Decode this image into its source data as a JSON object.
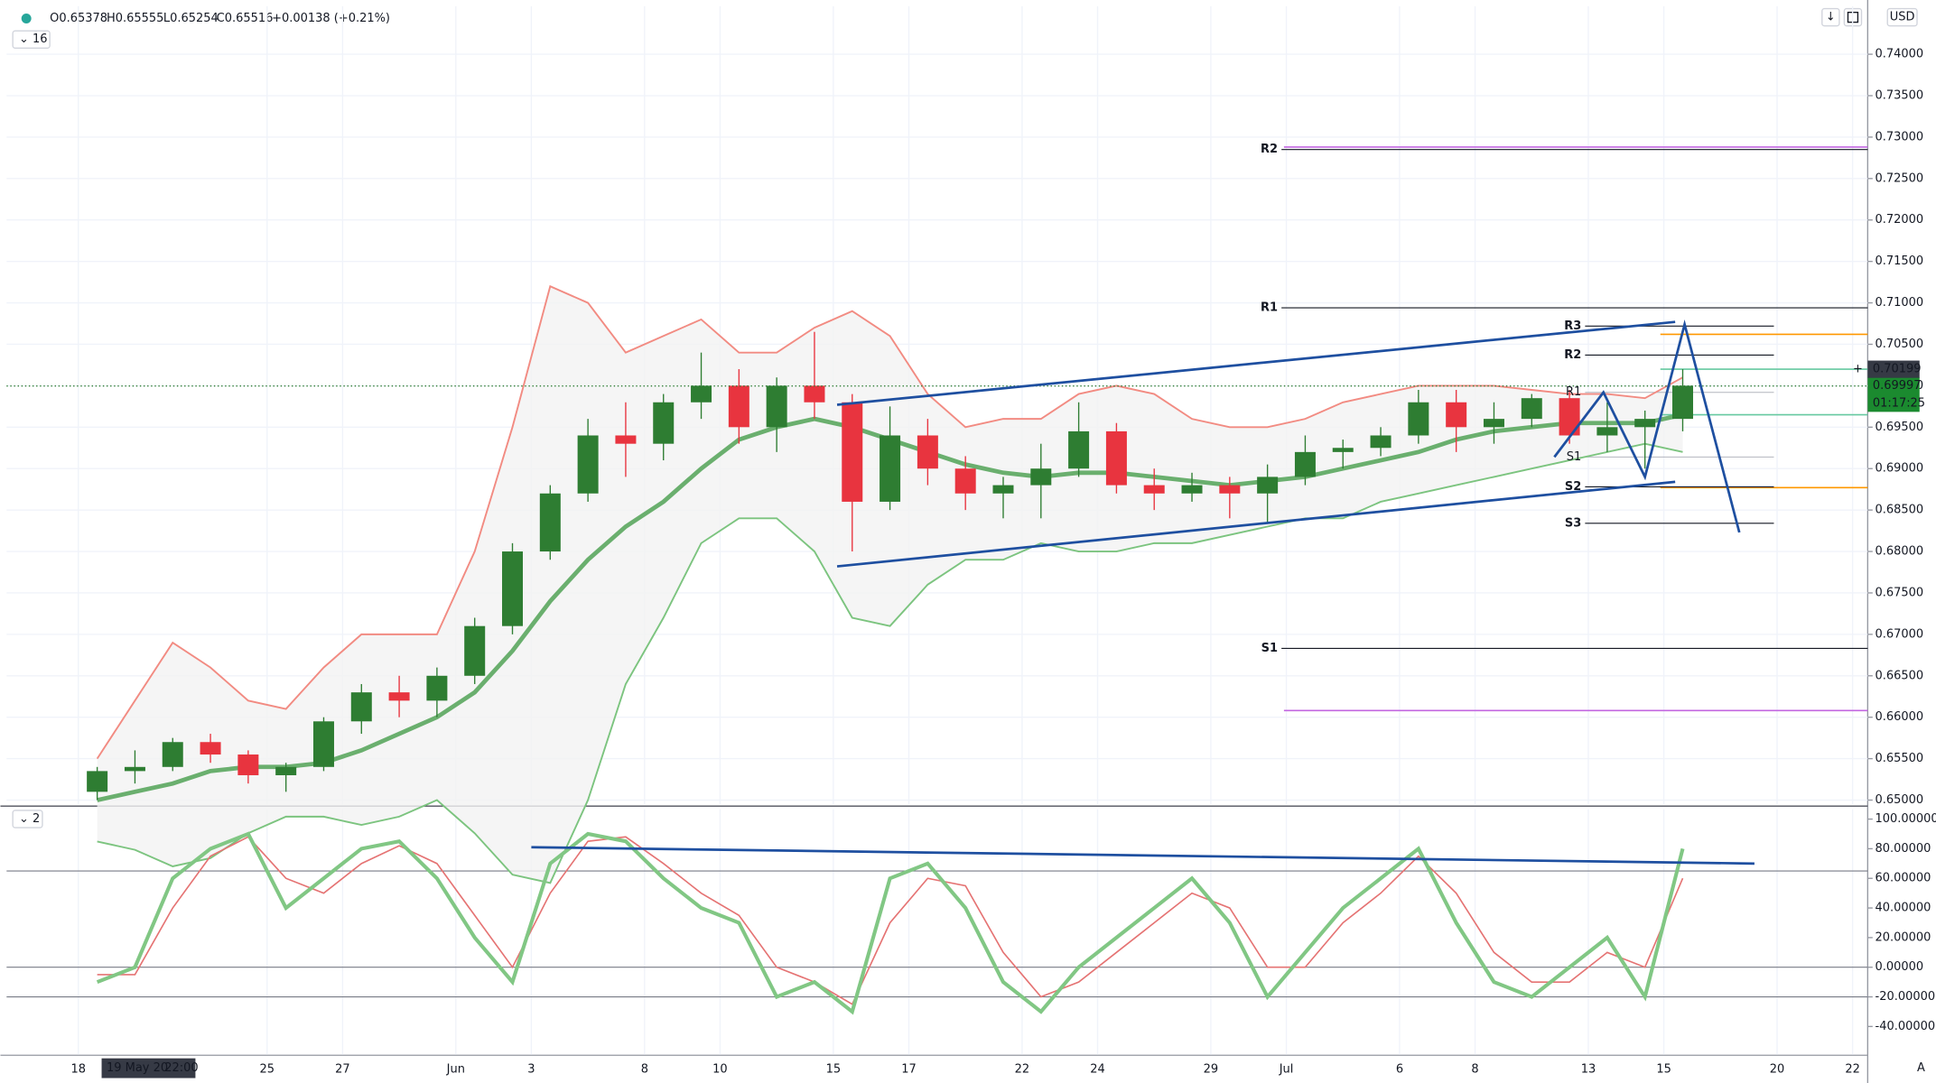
{
  "header": {
    "ohlc": [
      "O0.65378",
      "H0.65555",
      "L0.65254",
      "C0.65516",
      "+0.00138 (+0.21%)"
    ],
    "interval": "16",
    "pane_label": "2",
    "currency": "USD",
    "crosshair_time": [
      "19 May 20",
      "22:00"
    ],
    "countdown": "01:17:25"
  },
  "chart_data": [
    {
      "type": "candlestick",
      "xlim": [
        -1.9,
        47.4
      ],
      "xticks": [
        {
          "value": 0,
          "label": "18"
        },
        {
          "value": 5,
          "label": "25"
        },
        {
          "value": 7,
          "label": "27"
        },
        {
          "value": 10,
          "label": "Jun"
        },
        {
          "value": 12,
          "label": "3"
        },
        {
          "value": 15,
          "label": "8"
        },
        {
          "value": 17,
          "label": "10"
        },
        {
          "value": 20,
          "label": "15"
        },
        {
          "value": 22,
          "label": "17"
        },
        {
          "value": 25,
          "label": "22"
        },
        {
          "value": 27,
          "label": "24"
        },
        {
          "value": 30,
          "label": "29"
        },
        {
          "value": 32,
          "label": "Jul"
        },
        {
          "value": 35,
          "label": "6"
        },
        {
          "value": 37,
          "label": "8"
        },
        {
          "value": 40,
          "label": "13"
        },
        {
          "value": 42,
          "label": "15"
        },
        {
          "value": 45,
          "label": "20"
        },
        {
          "value": 47,
          "label": "22"
        }
      ],
      "ylim": [
        0.6495,
        0.7458
      ],
      "yticks": [
        {
          "value": 0.65,
          "label": "0.65000"
        },
        {
          "value": 0.655,
          "label": "0.65500"
        },
        {
          "value": 0.66,
          "label": "0.66000"
        },
        {
          "value": 0.665,
          "label": "0.66500"
        },
        {
          "value": 0.67,
          "label": "0.67000"
        },
        {
          "value": 0.675,
          "label": "0.67500"
        },
        {
          "value": 0.68,
          "label": "0.68000"
        },
        {
          "value": 0.685,
          "label": "0.68500"
        },
        {
          "value": 0.69,
          "label": "0.69000"
        },
        {
          "value": 0.695,
          "label": "0.69500"
        },
        {
          "value": 0.7,
          "label": "0.70000"
        },
        {
          "value": 0.705,
          "label": "0.70500"
        },
        {
          "value": 0.71,
          "label": "0.71000"
        },
        {
          "value": 0.715,
          "label": "0.71500"
        },
        {
          "value": 0.72,
          "label": "0.72000"
        },
        {
          "value": 0.725,
          "label": "0.72500"
        },
        {
          "value": 0.73,
          "label": "0.73000"
        },
        {
          "value": 0.735,
          "label": "0.73500"
        },
        {
          "value": 0.74,
          "label": "0.74000"
        }
      ],
      "grid": true,
      "up_color": "#2e7d32",
      "down_color": "#e8343f",
      "candles": [
        [
          0.651,
          0.654,
          0.65,
          0.6535
        ],
        [
          0.6535,
          0.656,
          0.652,
          0.654
        ],
        [
          0.654,
          0.6575,
          0.6535,
          0.657
        ],
        [
          0.657,
          0.658,
          0.6545,
          0.6555
        ],
        [
          0.6555,
          0.656,
          0.652,
          0.653
        ],
        [
          0.653,
          0.6545,
          0.651,
          0.654
        ],
        [
          0.654,
          0.66,
          0.6535,
          0.6595
        ],
        [
          0.6595,
          0.664,
          0.658,
          0.663
        ],
        [
          0.663,
          0.665,
          0.66,
          0.662
        ],
        [
          0.662,
          0.666,
          0.66,
          0.665
        ],
        [
          0.665,
          0.672,
          0.664,
          0.671
        ],
        [
          0.671,
          0.681,
          0.67,
          0.68
        ],
        [
          0.68,
          0.688,
          0.679,
          0.687
        ],
        [
          0.687,
          0.696,
          0.686,
          0.694
        ],
        [
          0.694,
          0.698,
          0.689,
          0.693
        ],
        [
          0.693,
          0.699,
          0.691,
          0.698
        ],
        [
          0.698,
          0.704,
          0.696,
          0.7
        ],
        [
          0.7,
          0.702,
          0.693,
          0.695
        ],
        [
          0.695,
          0.701,
          0.692,
          0.7
        ],
        [
          0.7,
          0.7065,
          0.696,
          0.698
        ],
        [
          0.698,
          0.699,
          0.68,
          0.686
        ],
        [
          0.686,
          0.6975,
          0.685,
          0.694
        ],
        [
          0.694,
          0.696,
          0.688,
          0.69
        ],
        [
          0.69,
          0.6915,
          0.685,
          0.687
        ],
        [
          0.687,
          0.689,
          0.684,
          0.688
        ],
        [
          0.688,
          0.693,
          0.684,
          0.69
        ],
        [
          0.69,
          0.698,
          0.689,
          0.6945
        ],
        [
          0.6945,
          0.6955,
          0.687,
          0.688
        ],
        [
          0.688,
          0.69,
          0.685,
          0.687
        ],
        [
          0.687,
          0.6895,
          0.686,
          0.688
        ],
        [
          0.688,
          0.689,
          0.684,
          0.687
        ],
        [
          0.687,
          0.6905,
          0.6835,
          0.689
        ],
        [
          0.689,
          0.694,
          0.688,
          0.692
        ],
        [
          0.692,
          0.6935,
          0.69,
          0.6925
        ],
        [
          0.6925,
          0.695,
          0.6915,
          0.694
        ],
        [
          0.694,
          0.6995,
          0.693,
          0.698
        ],
        [
          0.698,
          0.6995,
          0.692,
          0.695
        ],
        [
          0.695,
          0.698,
          0.693,
          0.696
        ],
        [
          0.696,
          0.699,
          0.695,
          0.6985
        ],
        [
          0.6985,
          0.6995,
          0.693,
          0.694
        ],
        [
          0.694,
          0.698,
          0.692,
          0.695
        ],
        [
          0.695,
          0.697,
          0.69,
          0.696
        ],
        [
          0.696,
          0.702,
          0.6945,
          0.7
        ]
      ],
      "overlays": [
        {
          "color": "#f28b82",
          "width": 1.4,
          "values": [
            0.655,
            0.662,
            0.669,
            0.666,
            0.662,
            0.661,
            0.666,
            0.67,
            0.67,
            0.67,
            0.68,
            0.695,
            0.712,
            0.71,
            0.704,
            0.706,
            0.708,
            0.704,
            0.704,
            0.707,
            0.709,
            0.706,
            0.699,
            0.695,
            0.696,
            0.696,
            0.699,
            0.7,
            0.699,
            0.696,
            0.695,
            0.695,
            0.696,
            0.698,
            0.699,
            0.7,
            0.7,
            0.7,
            0.6995,
            0.699,
            0.699,
            0.6985,
            0.701
          ]
        },
        {
          "color": "#6aaf6e",
          "width": 3.5,
          "values": [
            0.65,
            0.651,
            0.652,
            0.6535,
            0.654,
            0.654,
            0.6545,
            0.656,
            0.658,
            0.66,
            0.663,
            0.668,
            0.674,
            0.679,
            0.683,
            0.686,
            0.69,
            0.6935,
            0.695,
            0.696,
            0.695,
            0.6935,
            0.692,
            0.6905,
            0.6895,
            0.689,
            0.6895,
            0.6895,
            0.689,
            0.6885,
            0.688,
            0.6885,
            0.689,
            0.69,
            0.691,
            0.692,
            0.6935,
            0.6945,
            0.695,
            0.6955,
            0.6955,
            0.6955,
            0.6965
          ]
        },
        {
          "color": "#7cc47f",
          "width": 1.4,
          "values": [
            0.645,
            0.644,
            0.642,
            0.643,
            0.646,
            0.648,
            0.648,
            0.647,
            0.648,
            0.65,
            0.646,
            0.641,
            0.64,
            0.65,
            0.664,
            0.672,
            0.681,
            0.684,
            0.684,
            0.68,
            0.672,
            0.671,
            0.676,
            0.679,
            0.679,
            0.681,
            0.68,
            0.68,
            0.681,
            0.681,
            0.682,
            0.683,
            0.684,
            0.684,
            0.686,
            0.687,
            0.688,
            0.689,
            0.69,
            0.691,
            0.692,
            0.693,
            0.692
          ]
        }
      ],
      "pivots_weekly": [
        {
          "label": "R2",
          "value": 0.7285
        },
        {
          "label": "R1",
          "value": 0.7094
        },
        {
          "label": "S1",
          "value": 0.6683
        }
      ],
      "pivots_daily": [
        {
          "label": "R3",
          "value": 0.7072
        },
        {
          "label": "R2",
          "value": 0.7037
        },
        {
          "label": "R1",
          "value": 0.6992
        },
        {
          "label": "S1",
          "value": 0.6914
        },
        {
          "label": "S2",
          "value": 0.6878
        },
        {
          "label": "S3",
          "value": 0.6834
        }
      ],
      "levels": [
        {
          "value": 0.7288,
          "color": "#c266e0"
        },
        {
          "value": 0.7062,
          "color": "#ff9800"
        },
        {
          "value": 0.702,
          "color": "#66c9a0"
        },
        {
          "value": 0.6965,
          "color": "#66c9a0"
        },
        {
          "value": 0.6877,
          "color": "#ff9800"
        },
        {
          "value": 0.6608,
          "color": "#c266e0"
        }
      ],
      "drawings": [
        {
          "color": "#1e4fa0",
          "points": [
            [
              20.1,
              0.6977
            ],
            [
              42.3,
              0.7077
            ]
          ]
        },
        {
          "color": "#1e4fa0",
          "points": [
            [
              20.1,
              0.6782
            ],
            [
              42.3,
              0.6884
            ]
          ]
        },
        {
          "color": "#1e4fa0",
          "points": [
            [
              39.1,
              0.6914
            ],
            [
              40.4,
              0.6992
            ],
            [
              41.5,
              0.689
            ],
            [
              42.55,
              0.7074
            ],
            [
              44.0,
              0.6823
            ]
          ]
        }
      ],
      "crosshair": {
        "value": 0.70199,
        "label": "0.70199"
      },
      "last_price": {
        "value": 0.69997,
        "label": "0.69997"
      }
    },
    {
      "type": "line",
      "ylim": [
        -59,
        106.7
      ],
      "yticks": [
        {
          "value": 100,
          "label": "100.00000"
        },
        {
          "value": 80,
          "label": "80.00000"
        },
        {
          "value": 60,
          "label": "60.00000"
        },
        {
          "value": 40,
          "label": "40.00000"
        },
        {
          "value": 20,
          "label": "20.00000"
        },
        {
          "value": 0,
          "label": "0.00000"
        },
        {
          "value": -20,
          "label": "-20.00000"
        },
        {
          "value": -40,
          "label": "-40.00000"
        }
      ],
      "levels": [
        65,
        0,
        -20
      ],
      "lines": [
        {
          "color": "#e57373",
          "width": 1.2,
          "values": [
            -5,
            -5,
            40,
            75,
            88,
            60,
            50,
            70,
            82,
            70,
            35,
            0,
            50,
            85,
            88,
            70,
            50,
            35,
            0,
            -10,
            -25,
            30,
            60,
            55,
            10,
            -20,
            -10,
            10,
            30,
            50,
            40,
            0,
            0,
            30,
            50,
            75,
            50,
            10,
            -10,
            -10,
            10,
            0,
            60
          ]
        },
        {
          "color": "#81c784",
          "width": 3,
          "values": [
            -10,
            0,
            60,
            80,
            90,
            40,
            60,
            80,
            85,
            60,
            20,
            -10,
            70,
            90,
            85,
            60,
            40,
            30,
            -20,
            -10,
            -30,
            60,
            70,
            40,
            -10,
            -30,
            0,
            20,
            40,
            60,
            30,
            -20,
            10,
            40,
            60,
            80,
            30,
            -10,
            -20,
            0,
            20,
            -20,
            80
          ]
        }
      ],
      "drawings": [
        {
          "color": "#1e4fa0",
          "points": [
            [
              12.0,
              81
            ],
            [
              44.4,
              70
            ]
          ]
        }
      ]
    }
  ]
}
